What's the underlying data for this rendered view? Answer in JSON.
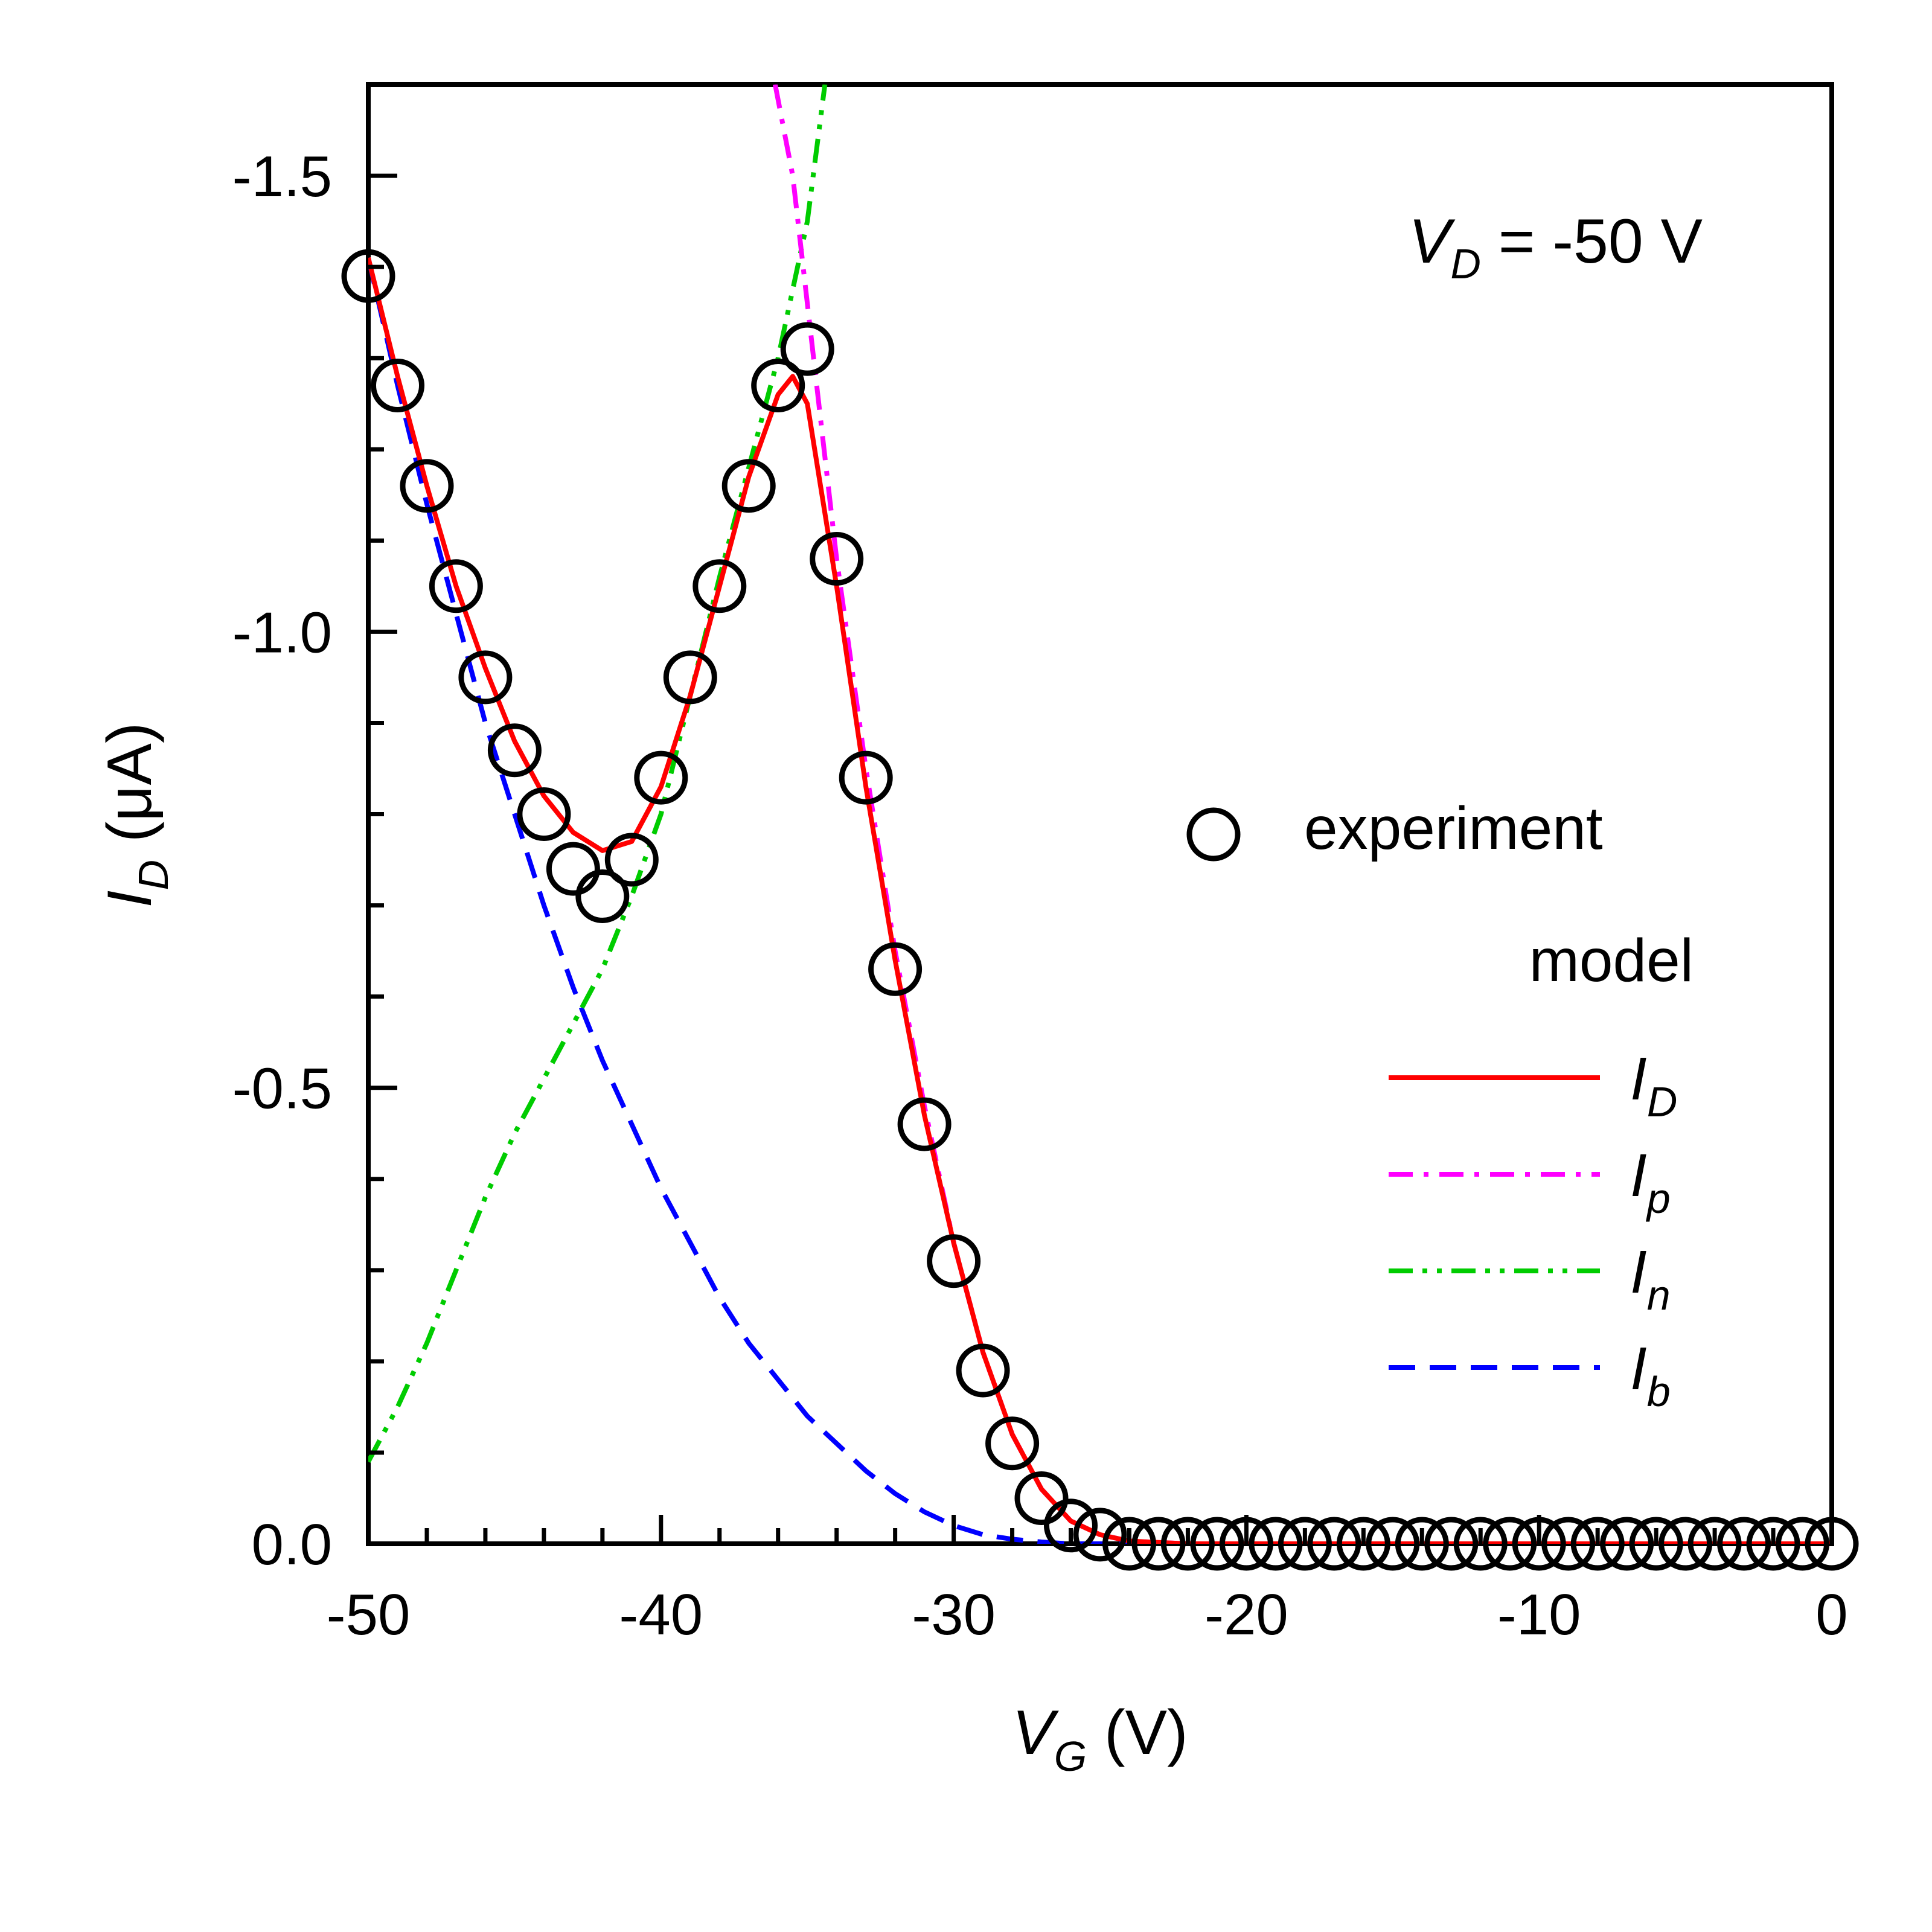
{
  "chart_data": {
    "type": "line",
    "annotation": {
      "var": "V",
      "sub": "D",
      "rest": " = -50 V"
    },
    "xlabel": {
      "var": "V",
      "sub": "G",
      "rest": " (V)"
    },
    "ylabel": {
      "var": "I",
      "sub": "D",
      "rest": " (μA)"
    },
    "xlim": [
      -50,
      0
    ],
    "ylim": [
      0,
      -1.6
    ],
    "xticks": [
      -50,
      -40,
      -30,
      -20,
      -10,
      0
    ],
    "yticks": [
      0.0,
      -0.5,
      -1.0,
      -1.5
    ],
    "xtick_labels": [
      "-50",
      "-40",
      "-30",
      "-20",
      "-10",
      "0"
    ],
    "ytick_labels": [
      "0.0",
      "-0.5",
      "-1.0",
      "-1.5"
    ],
    "grid": false,
    "legend": {
      "placement": "right",
      "experiment_label": "experiment",
      "model_label": "model",
      "entries": [
        {
          "var": "I",
          "sub": "D",
          "color": "#ff0000",
          "dash": "solid"
        },
        {
          "var": "I",
          "sub": "p",
          "color": "#ff00ff",
          "dash": "dashdot"
        },
        {
          "var": "I",
          "sub": "n",
          "color": "#00cc00",
          "dash": "dashdotdot"
        },
        {
          "var": "I",
          "sub": "b",
          "color": "#0000ff",
          "dash": "dashed"
        }
      ]
    },
    "experiment": {
      "x": [
        -50,
        -49,
        -48,
        -47,
        -46,
        -45,
        -44,
        -43,
        -42,
        -41,
        -40,
        -39,
        -38,
        -37,
        -36,
        -35,
        -34,
        -33,
        -32,
        -31,
        -30,
        -29,
        -28,
        -27,
        -26,
        -25,
        -24,
        -23,
        -22,
        -21,
        -20,
        -19,
        -18,
        -17,
        -16,
        -15,
        -14,
        -13,
        -12,
        -11,
        -10,
        -9,
        -8,
        -7,
        -6,
        -5,
        -4,
        -3,
        -2,
        -1,
        0
      ],
      "y": [
        -1.39,
        -1.27,
        -1.16,
        -1.05,
        -0.95,
        -0.87,
        -0.8,
        -0.74,
        -0.71,
        -0.75,
        -0.84,
        -0.95,
        -1.05,
        -1.16,
        -1.27,
        -1.31,
        -1.08,
        -0.84,
        -0.63,
        -0.46,
        -0.31,
        -0.19,
        -0.11,
        -0.05,
        -0.02,
        -0.01,
        0,
        0,
        0,
        0,
        0,
        0,
        0,
        0,
        0,
        0,
        0,
        0,
        0,
        0,
        0,
        0,
        0,
        0,
        0,
        0,
        0,
        0,
        0,
        0,
        0
      ]
    },
    "series": [
      {
        "name": "I_D",
        "color": "#ff0000",
        "dash": "solid",
        "x": [
          -50,
          -49,
          -48,
          -47,
          -46,
          -45,
          -44,
          -43,
          -42,
          -41,
          -40,
          -39,
          -38,
          -37,
          -36,
          -35.5,
          -35,
          -34,
          -33,
          -32,
          -31,
          -30,
          -29,
          -28,
          -27,
          -26,
          -25,
          -24,
          -22,
          -20,
          -15,
          -10,
          -5,
          0
        ],
        "y": [
          -1.41,
          -1.28,
          -1.16,
          -1.05,
          -0.96,
          -0.88,
          -0.82,
          -0.78,
          -0.76,
          -0.77,
          -0.83,
          -0.93,
          -1.05,
          -1.17,
          -1.26,
          -1.28,
          -1.25,
          -1.05,
          -0.83,
          -0.64,
          -0.47,
          -0.33,
          -0.21,
          -0.12,
          -0.06,
          -0.025,
          -0.01,
          -0.003,
          0,
          0,
          0,
          0,
          0,
          0
        ]
      },
      {
        "name": "I_p",
        "color": "#ff00ff",
        "dash": "dashdot",
        "x": [
          -36.1,
          -35.5,
          -35,
          -34.5,
          -34,
          -33,
          -32,
          -31,
          -30,
          -29,
          -28,
          -27,
          -26,
          -25,
          -24,
          -22,
          -20,
          -15,
          -10,
          -5,
          0
        ],
        "y": [
          -1.6,
          -1.5,
          -1.36,
          -1.22,
          -1.08,
          -0.85,
          -0.65,
          -0.48,
          -0.33,
          -0.21,
          -0.12,
          -0.06,
          -0.025,
          -0.01,
          -0.003,
          0,
          0,
          0,
          0,
          0,
          0
        ]
      },
      {
        "name": "I_n",
        "color": "#00cc00",
        "dash": "dashdotdot",
        "x": [
          -50,
          -49,
          -48,
          -47,
          -46,
          -45,
          -44,
          -43,
          -42,
          -41,
          -40,
          -39,
          -38,
          -37,
          -36,
          -35,
          -34.4
        ],
        "y": [
          -0.09,
          -0.15,
          -0.22,
          -0.3,
          -0.38,
          -0.45,
          -0.51,
          -0.57,
          -0.63,
          -0.71,
          -0.8,
          -0.93,
          -1.06,
          -1.18,
          -1.3,
          -1.45,
          -1.6
        ]
      },
      {
        "name": "I_b",
        "color": "#0000ff",
        "dash": "dashed",
        "x": [
          -50,
          -49,
          -48,
          -47,
          -46,
          -45,
          -44,
          -43,
          -42,
          -41,
          -40,
          -39,
          -38,
          -37,
          -36,
          -35,
          -34,
          -33,
          -32,
          -31,
          -30,
          -29,
          -28,
          -27,
          -26,
          -25,
          -20,
          -10,
          0
        ],
        "y": [
          -1.41,
          -1.27,
          -1.14,
          -1.02,
          -0.9,
          -0.8,
          -0.7,
          -0.61,
          -0.53,
          -0.46,
          -0.39,
          -0.33,
          -0.27,
          -0.22,
          -0.18,
          -0.14,
          -0.11,
          -0.08,
          -0.055,
          -0.035,
          -0.02,
          -0.01,
          -0.005,
          -0.002,
          0,
          0,
          0,
          0,
          0
        ]
      }
    ]
  }
}
